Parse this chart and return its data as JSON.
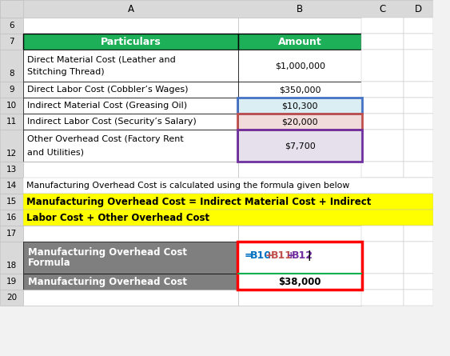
{
  "col_A_header": "Particulars",
  "col_B_header": "Amount",
  "header_bg": "#1EB058",
  "header_text_color": "#FFFFFF",
  "bottom_label_bg": "#7F7F7F",
  "bottom_label_text_color": "#FFFFFF",
  "bg_color": "#F2F2F2",
  "row_num_bg": "#D9D9D9",
  "col_header_bg": "#D9D9D9",
  "white": "#FFFFFF",
  "grid_light": "#C0C0C0",
  "grid_dark": "#000000",
  "b10_bg": "#DAEEF3",
  "b11_bg": "#F2DCDB",
  "b12_bg": "#E6E0EC",
  "blue_border": "#4472C4",
  "red_border": "#C0504D",
  "purple_border": "#7030A0",
  "red_box_border": "#FF0000",
  "green_line": "#00B050",
  "formula_bg": "#FFFF00",
  "row14_text": "Manufacturing Overhead Cost is calculated using the formula given below",
  "formula_line1": "Manufacturing Overhead Cost = Indirect Material Cost + Indirect",
  "formula_line2": "Labor Cost + Other Overhead Cost",
  "formula_parts": [
    {
      "text": "=",
      "color": "#0070C0"
    },
    {
      "text": "B10",
      "color": "#0070C0"
    },
    {
      "text": "+",
      "color": "#C0504D"
    },
    {
      "text": "B11",
      "color": "#C0504D"
    },
    {
      "text": "+",
      "color": "#7030A0"
    },
    {
      "text": "B12",
      "color": "#7030A0"
    },
    {
      "text": "|",
      "color": "#000000"
    }
  ],
  "rows": {
    "6": {
      "A": "",
      "B": "",
      "A_bg": "#FFFFFF",
      "B_bg": "#FFFFFF"
    },
    "7": {
      "A": "Particulars",
      "B": "Amount",
      "A_bg": "#1EB058",
      "B_bg": "#1EB058"
    },
    "8": {
      "A": "Direct Material Cost (Leather and\nStitching Thread)",
      "B": "$1,000,000",
      "A_bg": "#FFFFFF",
      "B_bg": "#FFFFFF",
      "tall": true
    },
    "9": {
      "A": "Direct Labor Cost (Cobbler’s Wages)",
      "B": "$350,000",
      "A_bg": "#FFFFFF",
      "B_bg": "#FFFFFF"
    },
    "10": {
      "A": "Indirect Material Cost (Greasing Oil)",
      "B": "$10,300",
      "A_bg": "#FFFFFF",
      "B_bg": "#DAEEF3"
    },
    "11": {
      "A": "Indirect Labor Cost (Security’s Salary)",
      "B": "$20,000",
      "A_bg": "#FFFFFF",
      "B_bg": "#F2DCDB"
    },
    "12": {
      "A": "Other Overhead Cost (Factory Rent\nand Utilities)",
      "B": "$7,700",
      "A_bg": "#FFFFFF",
      "B_bg": "#E6E0EC",
      "tall": true
    },
    "13": {
      "A": "",
      "B": "",
      "A_bg": "#FFFFFF",
      "B_bg": "#FFFFFF"
    },
    "14": {
      "A": "Manufacturing Overhead Cost is calculated using the formula given below",
      "B": "",
      "A_bg": "#FFFFFF",
      "B_bg": "#FFFFFF",
      "span": true
    },
    "15": {
      "A": "Manufacturing Overhead Cost = Indirect Material Cost + Indirect",
      "B": "",
      "A_bg": "#FFFF00",
      "B_bg": "#FFFF00",
      "span": true,
      "bold": true
    },
    "16": {
      "A": "Labor Cost + Other Overhead Cost",
      "B": "",
      "A_bg": "#FFFF00",
      "B_bg": "#FFFF00",
      "span": true,
      "bold": true
    },
    "17": {
      "A": "",
      "B": "",
      "A_bg": "#FFFFFF",
      "B_bg": "#FFFFFF"
    },
    "18": {
      "A": "Manufacturing Overhead Cost\nFormula",
      "B": "formula",
      "A_bg": "#7F7F7F",
      "B_bg": "#FFFFFF",
      "tall": true
    },
    "19": {
      "A": "Manufacturing Overhead Cost",
      "B": "$38,000",
      "A_bg": "#7F7F7F",
      "B_bg": "#FFFFFF"
    },
    "20": {
      "A": "",
      "B": "",
      "A_bg": "#FFFFFF",
      "B_bg": "#FFFFFF"
    }
  }
}
